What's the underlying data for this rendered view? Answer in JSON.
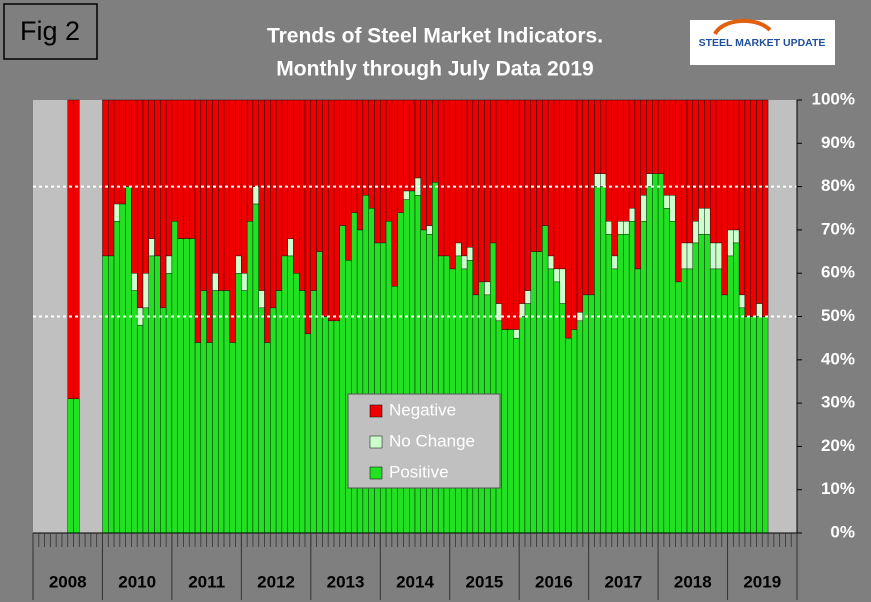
{
  "fig_label": "Fig 2",
  "logo_text": "STEEL MARKET UPDATE",
  "chart_data": {
    "type": "bar",
    "stacked": true,
    "title": [
      "Trends of Steel Market Indicators.",
      "Monthly through July Data  2019"
    ],
    "year_labels": [
      "2008",
      "2010",
      "2011",
      "2012",
      "2013",
      "2014",
      "2015",
      "2016",
      "2017",
      "2018",
      "2019"
    ],
    "months_per_year": 12,
    "series": [
      {
        "name": "Positive",
        "color": "#22e022",
        "values": [
          null,
          null,
          null,
          null,
          null,
          null,
          31,
          31,
          null,
          null,
          null,
          null,
          64,
          64,
          72,
          76,
          80,
          56,
          48,
          52,
          64,
          64,
          52,
          60,
          72,
          68,
          68,
          68,
          44,
          56,
          44,
          56,
          56,
          56,
          44,
          60,
          56,
          72,
          76,
          52,
          44,
          52,
          56,
          64,
          64,
          60,
          56,
          46,
          56,
          65,
          50,
          49,
          49,
          71,
          63,
          74,
          70,
          78,
          75,
          67,
          67,
          72,
          57,
          74,
          77,
          79,
          78,
          70,
          69,
          81,
          64,
          64,
          61,
          64,
          61,
          63,
          55,
          58,
          55,
          67,
          49,
          47,
          47,
          45,
          50,
          53,
          65,
          65,
          71,
          61,
          58,
          53,
          45,
          47,
          49,
          55,
          55,
          80,
          80,
          69,
          61,
          69,
          69,
          72,
          61,
          72,
          80,
          83,
          83,
          75,
          72,
          58,
          61,
          61,
          67,
          69,
          69,
          61,
          61,
          55,
          64,
          67,
          52,
          50,
          50,
          50,
          50,
          null,
          null,
          null,
          null,
          null
        ]
      },
      {
        "name": "No Change",
        "color": "#ccffcc",
        "values": [
          null,
          null,
          null,
          null,
          null,
          null,
          0,
          0,
          null,
          null,
          null,
          null,
          0,
          0,
          4,
          0,
          0,
          4,
          4,
          8,
          4,
          0,
          0,
          4,
          0,
          0,
          0,
          0,
          0,
          0,
          0,
          4,
          0,
          0,
          0,
          4,
          4,
          0,
          4,
          4,
          0,
          0,
          0,
          0,
          4,
          0,
          0,
          0,
          0,
          0,
          0,
          0,
          0,
          0,
          0,
          0,
          0,
          0,
          0,
          0,
          0,
          0,
          0,
          0,
          2,
          0,
          4,
          0,
          2,
          0,
          0,
          0,
          0,
          3,
          3,
          3,
          0,
          0,
          3,
          0,
          4,
          0,
          0,
          2,
          3,
          3,
          0,
          0,
          0,
          3,
          3,
          8,
          0,
          0,
          2,
          0,
          0,
          3,
          3,
          3,
          3,
          3,
          3,
          3,
          0,
          6,
          3,
          0,
          0,
          3,
          6,
          0,
          6,
          6,
          5,
          6,
          6,
          6,
          6,
          0,
          6,
          3,
          3,
          0,
          0,
          3,
          0,
          null,
          null,
          null,
          null,
          null
        ]
      },
      {
        "name": "Negative",
        "color": "#ee0000",
        "values": [
          null,
          null,
          null,
          null,
          null,
          null,
          69,
          69,
          null,
          null,
          null,
          null,
          36,
          36,
          24,
          24,
          20,
          40,
          48,
          40,
          32,
          36,
          48,
          36,
          28,
          32,
          32,
          32,
          56,
          44,
          56,
          40,
          44,
          44,
          56,
          36,
          40,
          28,
          20,
          44,
          56,
          48,
          44,
          36,
          32,
          40,
          44,
          54,
          44,
          35,
          50,
          51,
          51,
          29,
          37,
          26,
          30,
          22,
          25,
          33,
          33,
          28,
          43,
          26,
          21,
          21,
          18,
          30,
          29,
          19,
          36,
          36,
          39,
          33,
          36,
          34,
          45,
          42,
          42,
          33,
          47,
          53,
          53,
          53,
          47,
          44,
          35,
          35,
          29,
          36,
          39,
          39,
          55,
          53,
          49,
          45,
          45,
          17,
          17,
          28,
          36,
          28,
          28,
          25,
          39,
          22,
          17,
          17,
          17,
          22,
          22,
          42,
          33,
          33,
          28,
          25,
          25,
          33,
          33,
          45,
          30,
          30,
          45,
          50,
          50,
          47,
          50,
          null,
          null,
          null,
          null,
          null
        ]
      }
    ],
    "ylim": [
      0,
      100
    ],
    "yticks": [
      {
        "value": 0,
        "label": "0%"
      },
      {
        "value": 10,
        "label": "10%"
      },
      {
        "value": 20,
        "label": "20%"
      },
      {
        "value": 30,
        "label": "30%"
      },
      {
        "value": 40,
        "label": "40%"
      },
      {
        "value": 50,
        "label": "50%"
      },
      {
        "value": 60,
        "label": "60%"
      },
      {
        "value": 70,
        "label": "70%"
      },
      {
        "value": 80,
        "label": "80%"
      },
      {
        "value": 90,
        "label": "90%"
      },
      {
        "value": 100,
        "label": "100%"
      }
    ],
    "reference_lines": [
      50,
      80
    ],
    "legend_position": "lower center"
  }
}
